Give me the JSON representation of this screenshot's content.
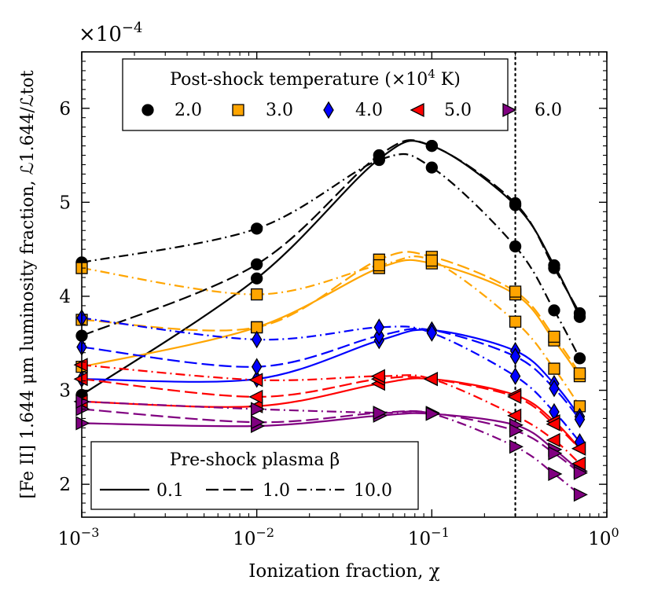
{
  "chart_data": {
    "type": "line",
    "scale_label": "×10",
    "scale_exponent": "−4",
    "xlabel": "Ionization fraction, χ",
    "ylabel": "[Fe II] 1.644 μm luminosity fraction, ℒ1.644/ℒtot",
    "xscale": "log",
    "xlim": [
      0.001,
      1.0
    ],
    "ylim": [
      1.65,
      6.6
    ],
    "x_ticks": [
      {
        "value": 0.001,
        "mantissa": "10",
        "exponent": "−3"
      },
      {
        "value": 0.01,
        "mantissa": "10",
        "exponent": "−2"
      },
      {
        "value": 0.1,
        "mantissa": "10",
        "exponent": "−1"
      },
      {
        "value": 1.0,
        "mantissa": "10",
        "exponent": "0"
      }
    ],
    "y_ticks": [
      2,
      3,
      4,
      5,
      6
    ],
    "y_tick_labels": [
      "2",
      "3",
      "4",
      "5",
      "6"
    ],
    "vline_x": 0.3,
    "x": [
      0.001,
      0.01,
      0.05,
      0.1,
      0.3,
      0.5,
      0.7
    ],
    "temperature_legend": {
      "title": "Post-shock temperature (×10",
      "title_exp": "4",
      "title_suffix": " K)",
      "location": "top-center"
    },
    "beta_legend": {
      "title": "Pre-shock plasma β",
      "location": "bottom-left"
    },
    "temperatures": [
      {
        "label": "2.0",
        "color": "#000000",
        "marker": "circle"
      },
      {
        "label": "3.0",
        "color": "#FFA500",
        "marker": "square"
      },
      {
        "label": "4.0",
        "color": "#0000FF",
        "marker": "diamond"
      },
      {
        "label": "5.0",
        "color": "#FF0000",
        "marker": "triangle-left"
      },
      {
        "label": "6.0",
        "color": "#800080",
        "marker": "triangle-right"
      }
    ],
    "betas": [
      {
        "label": "0.1",
        "dash": "solid"
      },
      {
        "label": "1.0",
        "dash": "dashed"
      },
      {
        "label": "10.0",
        "dash": "dashdot"
      }
    ],
    "series": [
      {
        "temperature": "2.0",
        "beta": "0.1",
        "values": [
          2.95,
          4.19,
          5.46,
          5.6,
          4.97,
          4.33,
          3.78
        ]
      },
      {
        "temperature": "2.0",
        "beta": "1.0",
        "values": [
          3.58,
          4.34,
          5.5,
          5.6,
          4.99,
          4.3,
          3.82
        ]
      },
      {
        "temperature": "2.0",
        "beta": "10.0",
        "values": [
          4.36,
          4.72,
          5.45,
          5.37,
          4.53,
          3.85,
          3.34
        ]
      },
      {
        "temperature": "3.0",
        "beta": "0.1",
        "values": [
          3.25,
          3.67,
          4.3,
          4.35,
          4.02,
          3.53,
          3.15
        ]
      },
      {
        "temperature": "3.0",
        "beta": "1.0",
        "values": [
          3.75,
          3.67,
          4.39,
          4.42,
          4.05,
          3.57,
          3.18
        ]
      },
      {
        "temperature": "3.0",
        "beta": "10.0",
        "values": [
          4.3,
          4.02,
          4.33,
          4.38,
          3.73,
          3.23,
          2.83
        ]
      },
      {
        "temperature": "4.0",
        "beta": "0.1",
        "values": [
          3.12,
          3.12,
          3.53,
          3.64,
          3.42,
          3.07,
          2.72
        ]
      },
      {
        "temperature": "4.0",
        "beta": "1.0",
        "values": [
          3.46,
          3.25,
          3.58,
          3.64,
          3.36,
          3.02,
          2.69
        ]
      },
      {
        "temperature": "4.0",
        "beta": "10.0",
        "values": [
          3.77,
          3.54,
          3.67,
          3.61,
          3.15,
          2.77,
          2.45
        ]
      },
      {
        "temperature": "5.0",
        "beta": "0.1",
        "values": [
          2.88,
          2.83,
          3.07,
          3.12,
          2.95,
          2.67,
          2.38
        ]
      },
      {
        "temperature": "5.0",
        "beta": "1.0",
        "values": [
          3.12,
          2.93,
          3.12,
          3.12,
          2.93,
          2.64,
          2.38
        ]
      },
      {
        "temperature": "5.0",
        "beta": "10.0",
        "values": [
          3.27,
          3.11,
          3.15,
          3.12,
          2.73,
          2.47,
          2.22
        ]
      },
      {
        "temperature": "6.0",
        "beta": "0.1",
        "values": [
          2.65,
          2.62,
          2.73,
          2.75,
          2.63,
          2.37,
          2.14
        ]
      },
      {
        "temperature": "6.0",
        "beta": "1.0",
        "values": [
          2.8,
          2.66,
          2.76,
          2.76,
          2.57,
          2.33,
          2.12
        ]
      },
      {
        "temperature": "6.0",
        "beta": "10.0",
        "values": [
          2.88,
          2.8,
          2.76,
          2.75,
          2.4,
          2.11,
          1.89
        ]
      }
    ]
  }
}
